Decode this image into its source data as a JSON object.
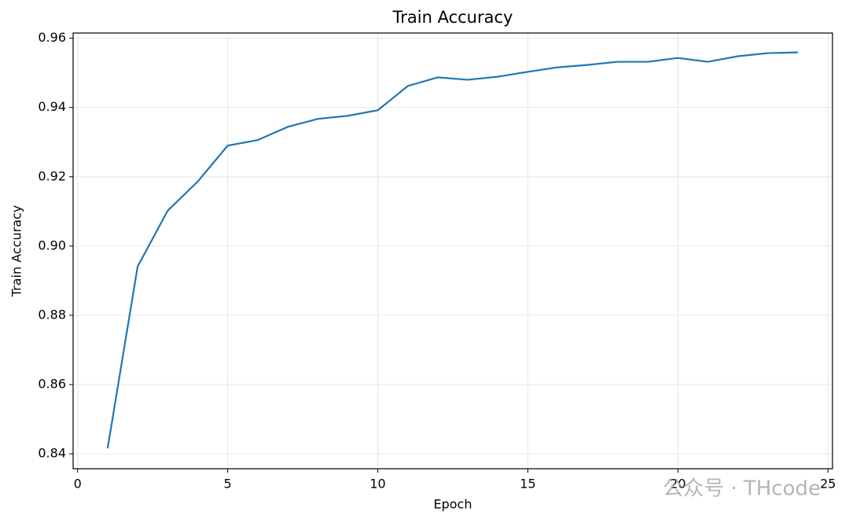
{
  "chart_data": {
    "type": "line",
    "title": "Train Accuracy",
    "x_label": "Epoch",
    "y_label": "Train Accuracy",
    "watermark": "公众号 · THcode",
    "x": [
      1,
      2,
      3,
      4,
      5,
      6,
      7,
      8,
      9,
      10,
      11,
      12,
      13,
      14,
      15,
      16,
      17,
      18,
      19,
      20,
      21,
      22,
      23,
      24
    ],
    "series": [
      {
        "name": "Train Accuracy",
        "color": "#1f77b4",
        "values": [
          0.8416,
          0.8941,
          0.9102,
          0.9186,
          0.929,
          0.9306,
          0.9344,
          0.9367,
          0.9376,
          0.9392,
          0.9462,
          0.9487,
          0.948,
          0.9489,
          0.9503,
          0.9516,
          0.9523,
          0.9532,
          0.9532,
          0.9543,
          0.9532,
          0.9548,
          0.9557,
          0.9559
        ]
      }
    ],
    "xlim": [
      -0.15,
      25.15
    ],
    "xticks": [
      0,
      5,
      10,
      15,
      20,
      25
    ],
    "ylim": [
      0.8357,
      0.9615
    ],
    "yticks": [
      0.84,
      0.86,
      0.88,
      {
        "value": 0.9,
        "label": "0.90"
      },
      0.92,
      0.94,
      0.96
    ],
    "grid": true,
    "legend": false
  }
}
